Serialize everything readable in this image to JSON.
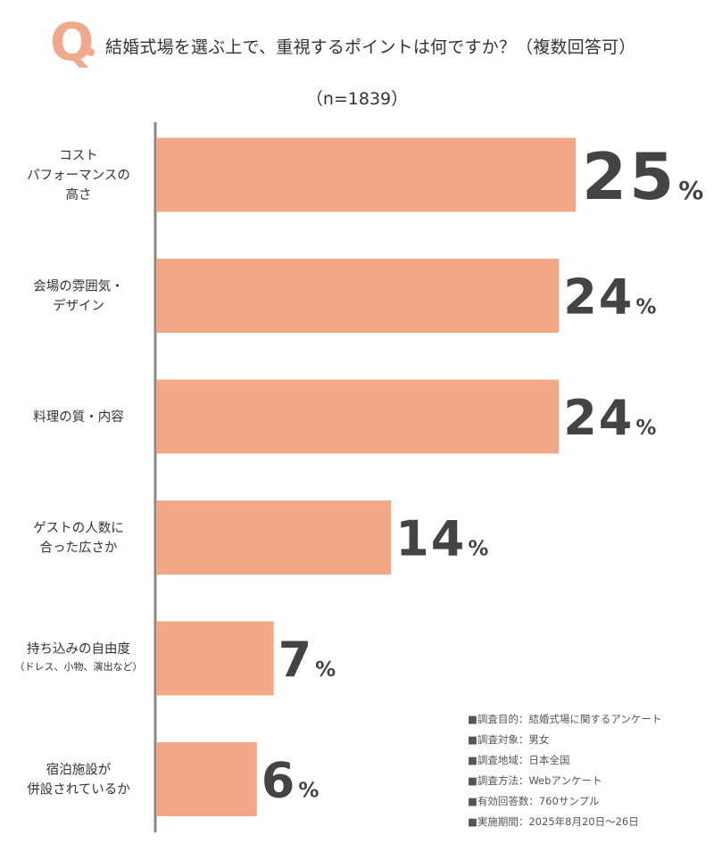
{
  "header": {
    "q_letter": "Q",
    "question": "結婚式場を選ぶ上で、重視するポイントは何ですか？（複数回答可）",
    "sample_size": "（n=1839）"
  },
  "colors": {
    "bar": "#f2a886",
    "axis": "#888888",
    "accent": "#f0a98a"
  },
  "chart_data": {
    "type": "bar",
    "orientation": "horizontal",
    "categories": [
      [
        "コスト",
        "パフォーマンスの",
        "高さ"
      ],
      [
        "会場の雰囲気・",
        "デザイン"
      ],
      [
        "料理の質・内容"
      ],
      [
        "ゲストの人数に",
        "合った広さか"
      ],
      [
        "持ち込みの自由度"
      ],
      [
        "宿泊施設が",
        "併設されているか"
      ]
    ],
    "category_subtitles": [
      "",
      "",
      "",
      "",
      "（ドレス、小物、演出など）",
      ""
    ],
    "values": [
      25,
      24,
      24,
      14,
      7,
      6
    ],
    "unit": "%",
    "xlim": [
      0,
      26
    ],
    "grid": false,
    "legend": "none"
  },
  "notes": [
    "■調査目的：結婚式場に関するアンケート",
    "■調査対象：男女",
    "■調査地域：日本全国",
    "■調査方法：Webアンケート",
    "■有効回答数：760サンプル",
    "■実施期間：2025年8月20日〜26日"
  ]
}
